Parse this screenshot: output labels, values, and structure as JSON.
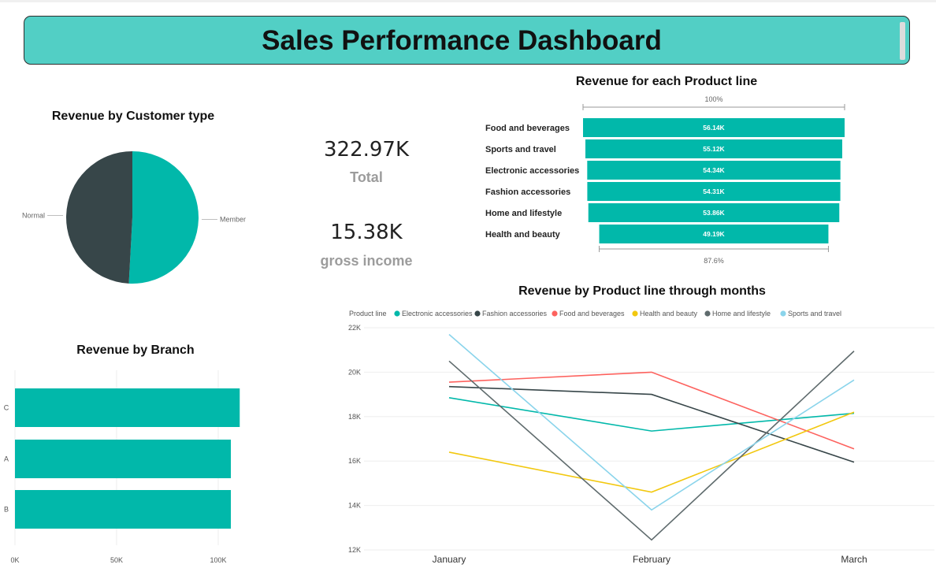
{
  "header": {
    "title": "Sales Performance Dashboard"
  },
  "kpis": {
    "total_value": "322.97K",
    "total_label": "Total",
    "gross_value": "15.38K",
    "gross_label": "gross income"
  },
  "colors": {
    "accent": "#01b8aa",
    "dark": "#374649",
    "header_bg": "#52cfc5"
  },
  "chart_data": [
    {
      "id": "customer_type",
      "type": "pie",
      "title": "Revenue by Customer type",
      "labels": [
        "Member",
        "Normal"
      ],
      "values": [
        164.2,
        158.7
      ],
      "colors": [
        "#01b8aa",
        "#374649"
      ]
    },
    {
      "id": "product_line",
      "type": "bar",
      "title": "Revenue for each Product line",
      "categories": [
        "Food and beverages",
        "Sports and travel",
        "Electronic accessories",
        "Fashion accessories",
        "Home and lifestyle",
        "Health and beauty"
      ],
      "values": [
        56.14,
        55.12,
        54.34,
        54.31,
        53.86,
        49.19
      ],
      "value_labels": [
        "56.14K",
        "55.12K",
        "54.34K",
        "54.31K",
        "53.86K",
        "49.19K"
      ],
      "top_percent": "100%",
      "bottom_percent": "87.6%"
    },
    {
      "id": "branch",
      "type": "bar",
      "title": "Revenue by Branch",
      "categories": [
        "C",
        "A",
        "B"
      ],
      "values": [
        110.57,
        106.2,
        106.2
      ],
      "xlim": [
        0,
        120
      ],
      "xticks": [
        "0K",
        "50K",
        "100K"
      ],
      "xtick_values": [
        0,
        50,
        100
      ]
    },
    {
      "id": "monthly",
      "type": "line",
      "title": "Revenue by Product line through months",
      "legend_title": "Product line",
      "x": [
        "January",
        "February",
        "March"
      ],
      "ylim": [
        12,
        22
      ],
      "yticks": [
        "12K",
        "14K",
        "16K",
        "18K",
        "20K",
        "22K"
      ],
      "ytick_values": [
        12,
        14,
        16,
        18,
        20,
        22
      ],
      "series": [
        {
          "name": "Electronic accessories",
          "color": "#01b8aa",
          "values": [
            18.85,
            17.35,
            18.15
          ]
        },
        {
          "name": "Fashion accessories",
          "color": "#374649",
          "values": [
            19.35,
            19.0,
            15.95
          ]
        },
        {
          "name": "Food and beverages",
          "color": "#fd625e",
          "values": [
            19.55,
            20.0,
            16.55
          ]
        },
        {
          "name": "Health and beauty",
          "color": "#f2c80f",
          "values": [
            16.4,
            14.6,
            18.2
          ]
        },
        {
          "name": "Home and lifestyle",
          "color": "#5f6b6d",
          "values": [
            20.5,
            12.45,
            20.95
          ]
        },
        {
          "name": "Sports and travel",
          "color": "#8ad4eb",
          "values": [
            21.7,
            13.8,
            19.65
          ]
        }
      ]
    }
  ]
}
